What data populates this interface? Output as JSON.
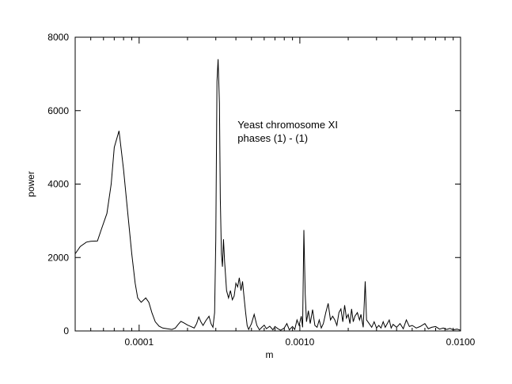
{
  "chart_data": {
    "type": "line",
    "title": "",
    "xlabel": "m",
    "ylabel": "power",
    "xscale": "log",
    "xlim": [
      4e-05,
      0.01
    ],
    "ylim": [
      0,
      8000
    ],
    "grid": false,
    "legend": "none",
    "x_ticks": [
      0.0001,
      0.001,
      0.01
    ],
    "x_tick_labels": [
      "0.0001",
      "0.0010",
      "0.0100"
    ],
    "y_ticks": [
      0,
      2000,
      4000,
      6000,
      8000
    ],
    "y_tick_labels": [
      "0",
      "2000",
      "4000",
      "6000",
      "8000"
    ],
    "annotation": [
      "Yeast chromosome XI",
      "phases (1) - (1)"
    ],
    "line_color": "#000000",
    "series": [
      {
        "values": [
          [
            4e-05,
            2100
          ],
          [
            4.3e-05,
            2300
          ],
          [
            4.7e-05,
            2420
          ],
          [
            5e-05,
            2440
          ],
          [
            5.5e-05,
            2450
          ],
          [
            5.8e-05,
            2750
          ],
          [
            6.3e-05,
            3200
          ],
          [
            6.7e-05,
            4000
          ],
          [
            7e-05,
            5000
          ],
          [
            7.5e-05,
            5450
          ],
          [
            8e-05,
            4400
          ],
          [
            8.5e-05,
            3200
          ],
          [
            9e-05,
            2100
          ],
          [
            9.45e-05,
            1300
          ],
          [
            9.8e-05,
            900
          ],
          [
            0.000103,
            780
          ],
          [
            0.00011,
            900
          ],
          [
            0.000115,
            780
          ],
          [
            0.00012,
            500
          ],
          [
            0.000126,
            250
          ],
          [
            0.000133,
            130
          ],
          [
            0.00014,
            80
          ],
          [
            0.00015,
            60
          ],
          [
            0.00016,
            40
          ],
          [
            0.000168,
            80
          ],
          [
            0.000175,
            180
          ],
          [
            0.000182,
            260
          ],
          [
            0.00019,
            220
          ],
          [
            0.0002,
            160
          ],
          [
            0.00021,
            120
          ],
          [
            0.00022,
            80
          ],
          [
            0.000228,
            200
          ],
          [
            0.000235,
            380
          ],
          [
            0.000242,
            250
          ],
          [
            0.00025,
            150
          ],
          [
            0.00026,
            280
          ],
          [
            0.000272,
            400
          ],
          [
            0.00028,
            200
          ],
          [
            0.000288,
            100
          ],
          [
            0.000295,
            500
          ],
          [
            0.0003,
            2500
          ],
          [
            0.000305,
            6800
          ],
          [
            0.00031,
            7400
          ],
          [
            0.000316,
            6200
          ],
          [
            0.00032,
            3600
          ],
          [
            0.000325,
            2100
          ],
          [
            0.00033,
            1750
          ],
          [
            0.000335,
            2500
          ],
          [
            0.00034,
            1900
          ],
          [
            0.00035,
            1100
          ],
          [
            0.00036,
            900
          ],
          [
            0.00037,
            1100
          ],
          [
            0.00038,
            850
          ],
          [
            0.00039,
            950
          ],
          [
            0.0004,
            1300
          ],
          [
            0.00041,
            1200
          ],
          [
            0.00042,
            1450
          ],
          [
            0.00043,
            1100
          ],
          [
            0.00044,
            1350
          ],
          [
            0.00045,
            900
          ],
          [
            0.00046,
            500
          ],
          [
            0.00047,
            150
          ],
          [
            0.00048,
            40
          ],
          [
            0.0005,
            200
          ],
          [
            0.00052,
            450
          ],
          [
            0.00054,
            150
          ],
          [
            0.00056,
            30
          ],
          [
            0.00058,
            100
          ],
          [
            0.0006,
            160
          ],
          [
            0.00062,
            60
          ],
          [
            0.00065,
            130
          ],
          [
            0.00068,
            30
          ],
          [
            0.0007,
            120
          ],
          [
            0.00073,
            60
          ],
          [
            0.00076,
            20
          ],
          [
            0.0008,
            80
          ],
          [
            0.00083,
            200
          ],
          [
            0.00086,
            30
          ],
          [
            0.0009,
            120
          ],
          [
            0.00093,
            40
          ],
          [
            0.00096,
            300
          ],
          [
            0.00099,
            150
          ],
          [
            0.00102,
            400
          ],
          [
            0.00104,
            100
          ],
          [
            0.00106,
            2750
          ],
          [
            0.00108,
            1000
          ],
          [
            0.0011,
            250
          ],
          [
            0.00113,
            550
          ],
          [
            0.00116,
            200
          ],
          [
            0.0012,
            580
          ],
          [
            0.00124,
            150
          ],
          [
            0.00128,
            100
          ],
          [
            0.00132,
            300
          ],
          [
            0.00136,
            80
          ],
          [
            0.0014,
            200
          ],
          [
            0.00145,
            500
          ],
          [
            0.0015,
            750
          ],
          [
            0.00155,
            300
          ],
          [
            0.0016,
            400
          ],
          [
            0.00165,
            300
          ],
          [
            0.0017,
            150
          ],
          [
            0.00175,
            500
          ],
          [
            0.0018,
            600
          ],
          [
            0.00185,
            250
          ],
          [
            0.0019,
            700
          ],
          [
            0.00195,
            350
          ],
          [
            0.002,
            450
          ],
          [
            0.00205,
            200
          ],
          [
            0.0021,
            600
          ],
          [
            0.00215,
            250
          ],
          [
            0.0022,
            400
          ],
          [
            0.00228,
            500
          ],
          [
            0.00235,
            300
          ],
          [
            0.0024,
            450
          ],
          [
            0.00248,
            100
          ],
          [
            0.00255,
            1350
          ],
          [
            0.0026,
            300
          ],
          [
            0.0027,
            200
          ],
          [
            0.0028,
            100
          ],
          [
            0.0029,
            250
          ],
          [
            0.003,
            80
          ],
          [
            0.0031,
            150
          ],
          [
            0.0032,
            80
          ],
          [
            0.0033,
            250
          ],
          [
            0.0034,
            100
          ],
          [
            0.0035,
            200
          ],
          [
            0.0036,
            300
          ],
          [
            0.0037,
            80
          ],
          [
            0.0038,
            180
          ],
          [
            0.004,
            100
          ],
          [
            0.0042,
            200
          ],
          [
            0.0044,
            60
          ],
          [
            0.0046,
            300
          ],
          [
            0.0048,
            120
          ],
          [
            0.005,
            150
          ],
          [
            0.0053,
            80
          ],
          [
            0.0056,
            120
          ],
          [
            0.006,
            200
          ],
          [
            0.0063,
            60
          ],
          [
            0.0066,
            100
          ],
          [
            0.007,
            120
          ],
          [
            0.0074,
            50
          ],
          [
            0.0078,
            80
          ],
          [
            0.0082,
            40
          ],
          [
            0.0086,
            70
          ],
          [
            0.009,
            30
          ],
          [
            0.0095,
            50
          ],
          [
            0.01,
            20
          ]
        ]
      }
    ]
  }
}
